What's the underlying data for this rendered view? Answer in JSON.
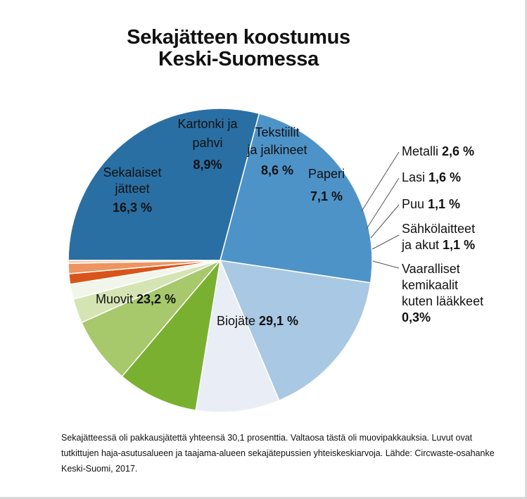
{
  "title": {
    "line1": "Sekajätteen koostumus",
    "line2": "Keski-Suomessa"
  },
  "footnote": "Sekajätteessä oli pakkausjätettä yhteensä 30,1 prosenttia. Valtaosa tästä oli muovipakkauksia. Luvut ovat tutkittujen haja-asutusalueen ja taajama-alueen sekajätepussien yhteiskeskiarvoja. Lähde: Circwaste-osahanke Keski-Suomi, 2017.",
  "chart_data": {
    "type": "pie",
    "title": "Sekajätteen koostumus Keski-Suomessa",
    "unit": "%",
    "slices": [
      {
        "label": [
          "Biojäte"
        ],
        "value_text": "29,1 %",
        "value": 29.1,
        "color": "#2a6fa3"
      },
      {
        "label": [
          "Muovit"
        ],
        "value_text": "23,2 %",
        "value": 23.2,
        "color": "#4e93c8"
      },
      {
        "label": [
          "Sekalaiset",
          "jätteet"
        ],
        "value_text": "16,3 %",
        "value": 16.3,
        "color": "#a9c8e3"
      },
      {
        "label": [
          "Kartonki ja",
          "pahvi"
        ],
        "value_text": "8,9%",
        "value": 8.9,
        "color": "#e9eef6"
      },
      {
        "label": [
          "Tekstiilit",
          "ja jalkineet"
        ],
        "value_text": "8,6 %",
        "value": 8.6,
        "color": "#7ab02f"
      },
      {
        "label": [
          "Paperi"
        ],
        "value_text": "7,1 %",
        "value": 7.1,
        "color": "#a7c86b"
      },
      {
        "label": [
          "Metalli"
        ],
        "value_text": "2,6 %",
        "value": 2.6,
        "color": "#d4e4b3"
      },
      {
        "label": [
          "Lasi"
        ],
        "value_text": "1,6 %",
        "value": 1.6,
        "color": "#f2f5ea"
      },
      {
        "label": [
          "Puu"
        ],
        "value_text": "1,1 %",
        "value": 1.1,
        "color": "#d9541a"
      },
      {
        "label": [
          "Sähkölaitteet",
          "ja akut"
        ],
        "value_text": "1,1 %",
        "value": 1.1,
        "color": "#ed9460"
      },
      {
        "label": [
          "Vaaralliset",
          "kemikaalit",
          "kuten lääkkeet"
        ],
        "value_text": "0,3%",
        "value": 0.3,
        "color": "#f6c8a6"
      }
    ],
    "legend": "none"
  }
}
